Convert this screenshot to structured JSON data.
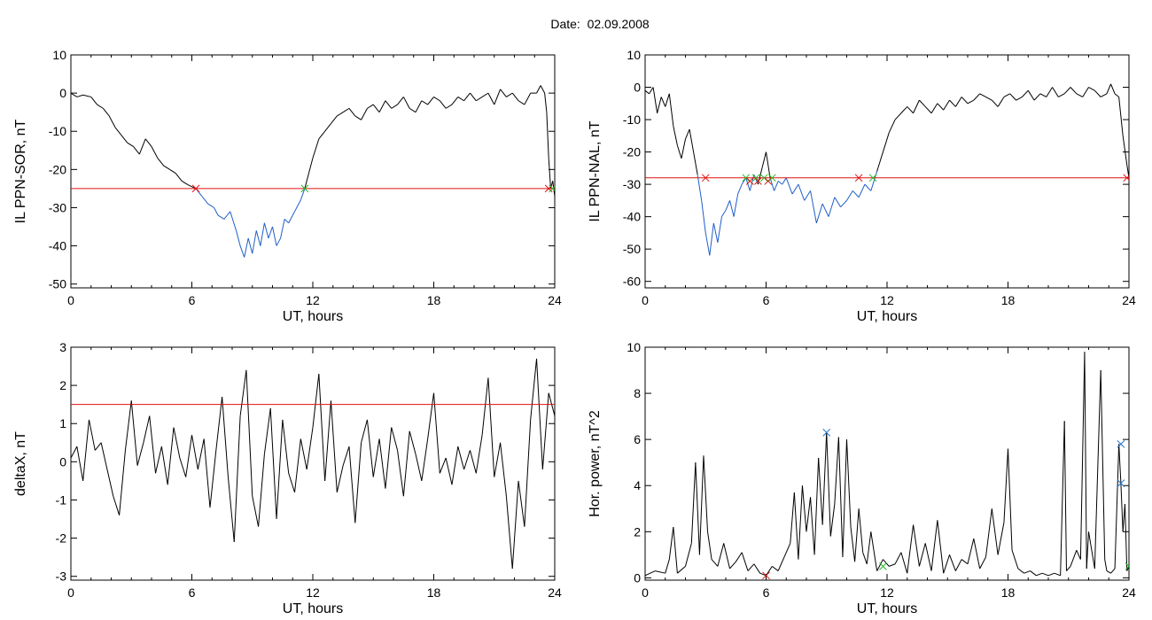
{
  "page": {
    "title": "Date:  02.09.2008"
  },
  "colors": {
    "trace": "#000000",
    "below_threshold": "#1f5fc8",
    "threshold_line": "#e01010",
    "red_marker": "#e01010",
    "green_marker": "#22bb22",
    "blue_marker": "#2277cc"
  },
  "chart_data": [
    {
      "id": "sor",
      "type": "line",
      "xlabel": "UT, hours",
      "ylabel": "IL PPN-SOR, nT",
      "xlim": [
        0,
        24
      ],
      "ylim": [
        -51,
        10
      ],
      "xticks": [
        0,
        6,
        12,
        18,
        24
      ],
      "yticks": [
        10,
        0,
        -10,
        -20,
        -30,
        -40,
        -50
      ],
      "threshold": -25,
      "series": [
        {
          "x": [
            0,
            0.3,
            0.6,
            1,
            1.3,
            1.6,
            1.9,
            2.2,
            2.5,
            2.8,
            3.1,
            3.4,
            3.7,
            4,
            4.3,
            4.6,
            4.9,
            5.2,
            5.5,
            5.8,
            6.2,
            6.5,
            6.8,
            7.1,
            7.3,
            7.6,
            7.9,
            8.2,
            8.4,
            8.6,
            8.8,
            9.0,
            9.2,
            9.4,
            9.6,
            9.8,
            10.0,
            10.2,
            10.4,
            10.6,
            10.8,
            11.0,
            11.2,
            11.4,
            11.6,
            11.8,
            12.0,
            12.3,
            12.6,
            12.9,
            13.2,
            13.5,
            13.8,
            14.1,
            14.4,
            14.7,
            15.0,
            15.3,
            15.6,
            15.9,
            16.2,
            16.5,
            16.8,
            17.1,
            17.4,
            17.7,
            18.0,
            18.3,
            18.6,
            18.9,
            19.2,
            19.5,
            19.8,
            20.1,
            20.4,
            20.7,
            21.0,
            21.3,
            21.6,
            21.9,
            22.2,
            22.5,
            22.8,
            23.1,
            23.3,
            23.5,
            23.6,
            23.7,
            23.8,
            23.9,
            24
          ],
          "y": [
            0,
            -1,
            -0.5,
            -1,
            -3,
            -4,
            -6,
            -9,
            -11,
            -13,
            -14,
            -16,
            -12,
            -14,
            -17,
            -19,
            -20,
            -21,
            -23,
            -24,
            -25,
            -27,
            -29,
            -30,
            -32,
            -33,
            -31,
            -36,
            -40,
            -43,
            -38,
            -42,
            -36,
            -40,
            -34,
            -38,
            -35,
            -40,
            -38,
            -33,
            -34,
            -32,
            -30,
            -28,
            -25,
            -21,
            -17,
            -12,
            -10,
            -8,
            -6,
            -5,
            -4,
            -6,
            -7,
            -4,
            -3,
            -5,
            -2,
            -4,
            -3,
            -1,
            -4,
            -5,
            -2,
            -3,
            -1,
            -2,
            -4,
            -3,
            -1,
            -2,
            0,
            -2,
            -1,
            0,
            -3,
            1,
            -1,
            0,
            -2,
            -3,
            0,
            0,
            2,
            0,
            -5,
            -17,
            -25,
            -23,
            -27
          ]
        }
      ],
      "markers": [
        {
          "x": 6.2,
          "y": -25,
          "color": "red"
        },
        {
          "x": 11.6,
          "y": -25,
          "color": "green"
        },
        {
          "x": 23.7,
          "y": -25,
          "color": "red"
        },
        {
          "x": 23.9,
          "y": -25,
          "color": "green"
        }
      ]
    },
    {
      "id": "nal",
      "type": "line",
      "xlabel": "UT, hours",
      "ylabel": "IL PPN-NAL, nT",
      "xlim": [
        0,
        24
      ],
      "ylim": [
        -62,
        10
      ],
      "xticks": [
        0,
        6,
        12,
        18,
        24
      ],
      "yticks": [
        10,
        0,
        -10,
        -20,
        -30,
        -40,
        -50,
        -60
      ],
      "threshold": -28,
      "series": [
        {
          "x": [
            0,
            0.2,
            0.4,
            0.6,
            0.8,
            1.0,
            1.2,
            1.4,
            1.6,
            1.8,
            2.0,
            2.2,
            2.4,
            2.6,
            2.8,
            3.0,
            3.2,
            3.4,
            3.6,
            3.8,
            4.0,
            4.2,
            4.4,
            4.6,
            4.8,
            5.0,
            5.2,
            5.4,
            5.6,
            5.8,
            6.0,
            6.2,
            6.4,
            6.6,
            6.8,
            7.0,
            7.3,
            7.6,
            7.9,
            8.2,
            8.5,
            8.8,
            9.1,
            9.4,
            9.7,
            10.0,
            10.3,
            10.6,
            10.9,
            11.2,
            11.5,
            11.8,
            12.1,
            12.4,
            12.7,
            13.0,
            13.3,
            13.6,
            13.9,
            14.2,
            14.5,
            14.8,
            15.1,
            15.4,
            15.7,
            16.0,
            16.3,
            16.6,
            16.9,
            17.2,
            17.5,
            17.8,
            18.1,
            18.4,
            18.7,
            19.0,
            19.3,
            19.6,
            19.9,
            20.2,
            20.5,
            20.8,
            21.1,
            21.4,
            21.7,
            22.0,
            22.3,
            22.6,
            22.9,
            23.1,
            23.3,
            23.5,
            23.7,
            23.9,
            24
          ],
          "y": [
            -1,
            -2,
            0,
            -8,
            -3,
            -6,
            -2,
            -12,
            -18,
            -22,
            -16,
            -13,
            -20,
            -27,
            -35,
            -45,
            -52,
            -42,
            -48,
            -40,
            -38,
            -35,
            -40,
            -33,
            -30,
            -28,
            -32,
            -27,
            -30,
            -25,
            -20,
            -28,
            -32,
            -29,
            -30,
            -28,
            -33,
            -30,
            -35,
            -32,
            -42,
            -36,
            -40,
            -34,
            -37,
            -35,
            -32,
            -34,
            -30,
            -32,
            -26,
            -20,
            -14,
            -10,
            -8,
            -6,
            -8,
            -4,
            -6,
            -8,
            -5,
            -7,
            -4,
            -6,
            -3,
            -5,
            -4,
            -2,
            -3,
            -4,
            -6,
            -3,
            -2,
            -4,
            -3,
            -1,
            -4,
            -2,
            -3,
            0,
            -3,
            -2,
            0,
            -2,
            -3,
            0,
            -1,
            -3,
            -2,
            1,
            -2,
            -3,
            -15,
            -24,
            -28
          ]
        }
      ],
      "markers": [
        {
          "x": 3.0,
          "y": -28,
          "color": "red"
        },
        {
          "x": 5.0,
          "y": -28,
          "color": "green"
        },
        {
          "x": 5.2,
          "y": -29,
          "color": "red"
        },
        {
          "x": 5.5,
          "y": -28,
          "color": "green"
        },
        {
          "x": 5.6,
          "y": -29,
          "color": "red"
        },
        {
          "x": 5.9,
          "y": -28,
          "color": "green"
        },
        {
          "x": 6.1,
          "y": -29,
          "color": "red"
        },
        {
          "x": 6.3,
          "y": -28,
          "color": "green"
        },
        {
          "x": 10.6,
          "y": -28,
          "color": "red"
        },
        {
          "x": 11.3,
          "y": -28,
          "color": "green"
        },
        {
          "x": 23.9,
          "y": -28,
          "color": "red"
        }
      ]
    },
    {
      "id": "deltax",
      "type": "line",
      "xlabel": "UT, hours",
      "ylabel": "deltaX, nT",
      "xlim": [
        0,
        24
      ],
      "ylim": [
        -3.1,
        3
      ],
      "xticks": [
        0,
        6,
        12,
        18,
        24
      ],
      "yticks": [
        3,
        2,
        1,
        0,
        -1,
        -2,
        -3
      ],
      "threshold": 1.5,
      "series": [
        {
          "x": [
            0,
            0.3,
            0.6,
            0.9,
            1.2,
            1.5,
            1.8,
            2.1,
            2.4,
            2.7,
            3.0,
            3.3,
            3.6,
            3.9,
            4.2,
            4.5,
            4.8,
            5.1,
            5.4,
            5.7,
            6.0,
            6.3,
            6.6,
            6.9,
            7.2,
            7.5,
            7.8,
            8.1,
            8.4,
            8.7,
            9.0,
            9.3,
            9.6,
            9.9,
            10.2,
            10.5,
            10.8,
            11.1,
            11.4,
            11.7,
            12.0,
            12.3,
            12.6,
            12.9,
            13.2,
            13.5,
            13.8,
            14.1,
            14.4,
            14.7,
            15.0,
            15.3,
            15.6,
            15.9,
            16.2,
            16.5,
            16.8,
            17.1,
            17.4,
            17.7,
            18.0,
            18.3,
            18.6,
            18.9,
            19.2,
            19.5,
            19.8,
            20.1,
            20.4,
            20.7,
            21.0,
            21.3,
            21.6,
            21.9,
            22.2,
            22.5,
            22.8,
            23.1,
            23.4,
            23.7,
            24
          ],
          "y": [
            0.1,
            0.4,
            -0.5,
            1.1,
            0.3,
            0.5,
            -0.2,
            -0.9,
            -1.4,
            0.3,
            1.6,
            -0.1,
            0.5,
            1.2,
            -0.3,
            0.4,
            -0.6,
            0.9,
            0.1,
            -0.4,
            0.7,
            -0.2,
            0.6,
            -1.2,
            0.3,
            1.7,
            -0.4,
            -2.1,
            1.2,
            2.4,
            -0.9,
            -1.7,
            0.2,
            1.4,
            -1.5,
            1.1,
            -0.3,
            -0.8,
            0.6,
            -0.2,
            0.9,
            2.3,
            -0.5,
            1.6,
            -0.8,
            -0.1,
            0.4,
            -1.6,
            0.5,
            1.1,
            -0.4,
            0.6,
            -0.7,
            0.9,
            0.3,
            -0.9,
            0.8,
            0.2,
            -0.5,
            0.6,
            1.8,
            -0.3,
            0.1,
            -0.6,
            0.4,
            -0.2,
            0.3,
            -0.3,
            0.7,
            2.2,
            -0.4,
            0.5,
            -0.9,
            -2.8,
            -0.5,
            -1.7,
            1.1,
            2.7,
            -0.2,
            1.8,
            1.2
          ]
        }
      ],
      "markers": []
    },
    {
      "id": "power",
      "type": "line",
      "xlabel": "UT, hours",
      "ylabel": "Hor. power, nT^2",
      "xlim": [
        0,
        24
      ],
      "ylim": [
        -0.1,
        10
      ],
      "xticks": [
        0,
        6,
        12,
        18,
        24
      ],
      "yticks": [
        10,
        8,
        6,
        4,
        2,
        0
      ],
      "threshold": null,
      "series": [
        {
          "x": [
            0,
            0.5,
            1.0,
            1.2,
            1.4,
            1.6,
            2.0,
            2.3,
            2.5,
            2.7,
            2.9,
            3.1,
            3.3,
            3.6,
            3.9,
            4.2,
            4.5,
            4.8,
            5.1,
            5.4,
            5.7,
            6.0,
            6.3,
            6.6,
            6.9,
            7.2,
            7.4,
            7.6,
            7.8,
            8.0,
            8.2,
            8.4,
            8.6,
            8.8,
            9.0,
            9.2,
            9.4,
            9.6,
            9.8,
            10.0,
            10.2,
            10.4,
            10.6,
            10.8,
            11.0,
            11.2,
            11.5,
            11.8,
            12.1,
            12.4,
            12.7,
            13.0,
            13.3,
            13.6,
            13.9,
            14.2,
            14.5,
            14.8,
            15.1,
            15.4,
            15.7,
            16.0,
            16.3,
            16.6,
            16.9,
            17.2,
            17.5,
            17.8,
            18.0,
            18.2,
            18.5,
            18.8,
            19.1,
            19.4,
            19.7,
            20.0,
            20.3,
            20.6,
            20.8,
            20.9,
            21.1,
            21.4,
            21.6,
            21.8,
            21.9,
            22.0,
            22.3,
            22.6,
            22.8,
            22.9,
            23.1,
            23.3,
            23.5,
            23.6,
            23.7,
            23.8,
            23.9,
            24
          ],
          "y": [
            0.1,
            0.3,
            0.2,
            0.8,
            2.2,
            0.2,
            0.5,
            1.5,
            5.0,
            1.0,
            5.3,
            2.0,
            0.8,
            0.5,
            1.5,
            0.4,
            0.7,
            1.1,
            0.3,
            0.6,
            0.2,
            0.1,
            0.5,
            0.3,
            0.9,
            1.5,
            3.7,
            0.8,
            4.0,
            2.0,
            3.5,
            1.0,
            5.2,
            2.3,
            6.3,
            1.8,
            3.2,
            6.1,
            0.9,
            6.0,
            2.2,
            0.7,
            3.0,
            1.1,
            0.6,
            2.0,
            0.3,
            0.8,
            0.5,
            0.6,
            1.1,
            0.2,
            2.3,
            0.5,
            1.5,
            0.3,
            2.5,
            0.2,
            1.0,
            0.3,
            0.8,
            0.6,
            1.7,
            0.4,
            0.9,
            3.0,
            1.0,
            2.4,
            5.6,
            1.2,
            0.4,
            0.2,
            0.3,
            0.1,
            0.2,
            0.1,
            0.2,
            0.1,
            6.8,
            0.3,
            0.5,
            1.2,
            0.8,
            9.8,
            0.4,
            2.0,
            0.4,
            9.0,
            0.8,
            0.3,
            0.2,
            0.4,
            5.8,
            4.1,
            2.0,
            3.2,
            0.3,
            0.5
          ]
        }
      ],
      "markers": [
        {
          "x": 6.0,
          "y": 0.1,
          "color": "red"
        },
        {
          "x": 9.0,
          "y": 6.3,
          "color": "blue"
        },
        {
          "x": 11.8,
          "y": 0.5,
          "color": "green"
        },
        {
          "x": 23.6,
          "y": 5.8,
          "color": "blue"
        },
        {
          "x": 23.6,
          "y": 4.1,
          "color": "blue"
        },
        {
          "x": 24.0,
          "y": 0.5,
          "color": "green"
        }
      ]
    }
  ]
}
